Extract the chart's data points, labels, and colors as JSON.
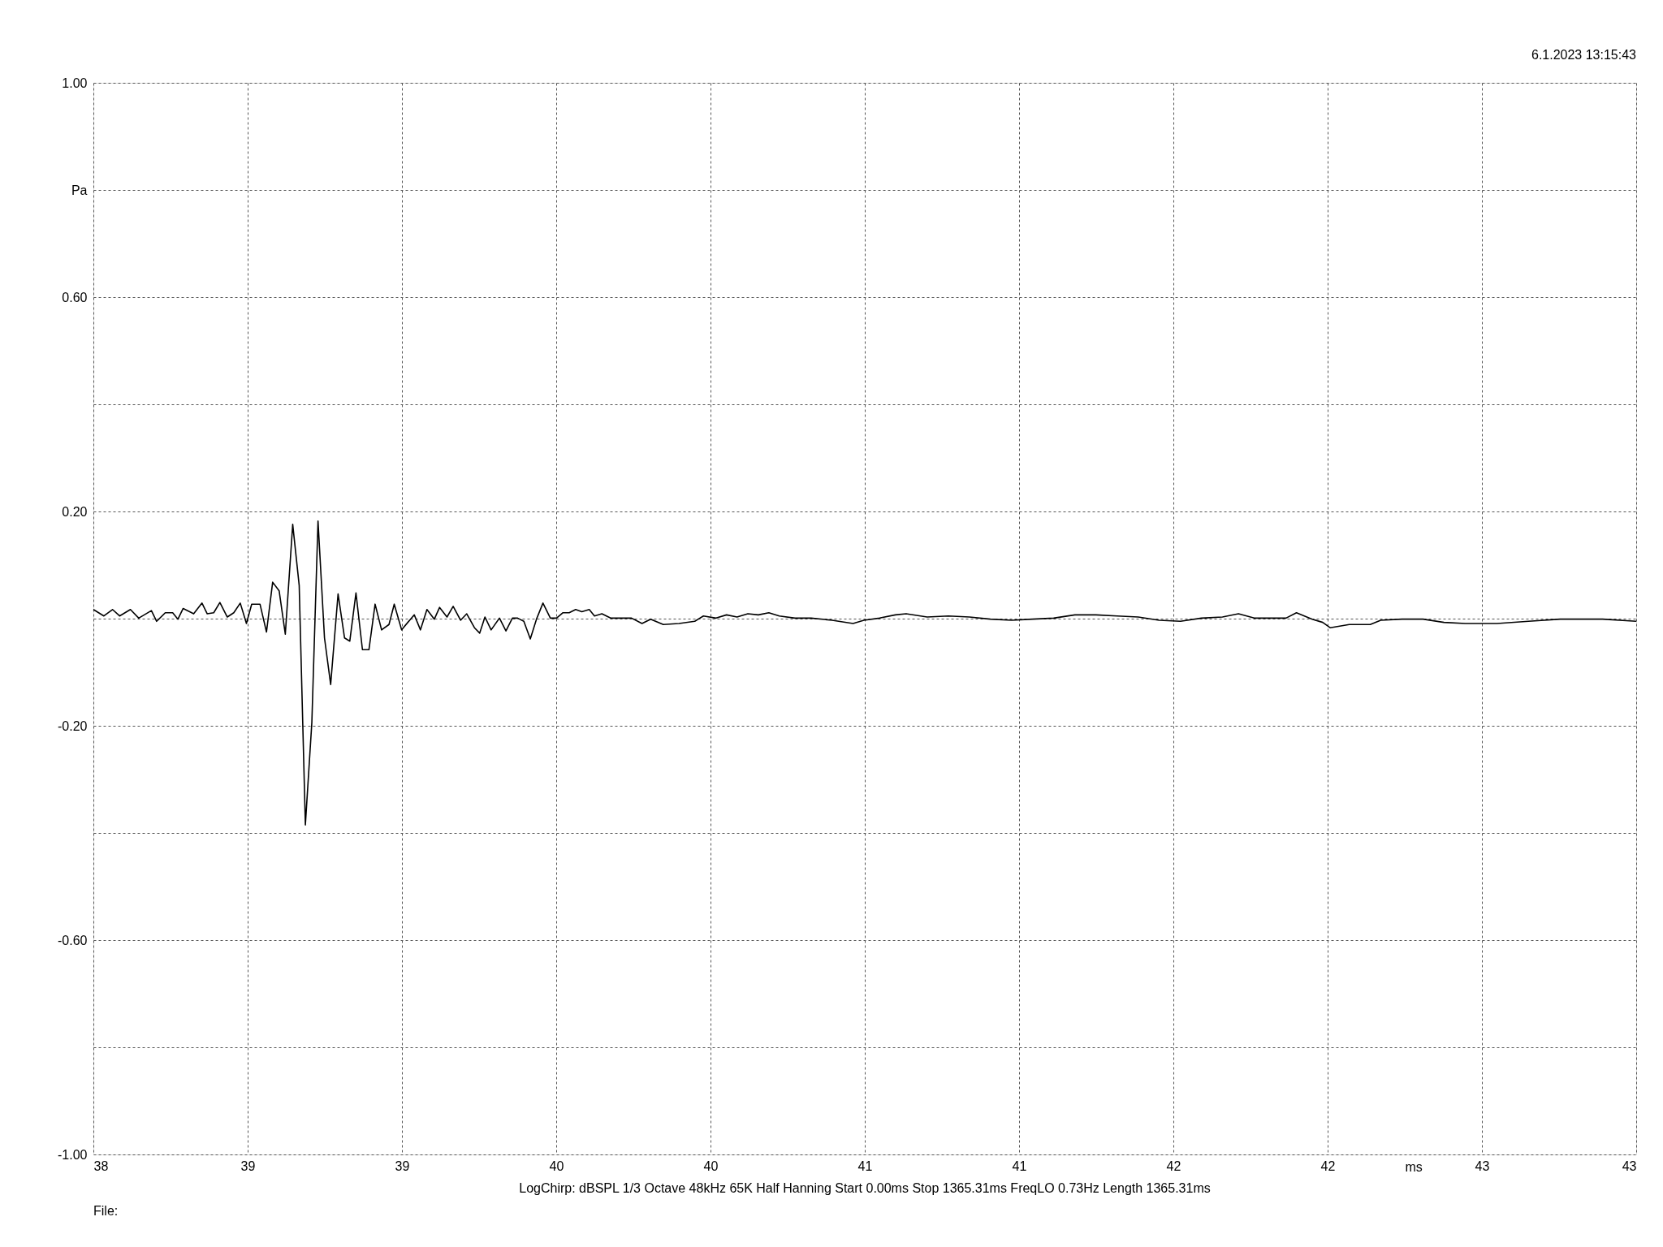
{
  "chart_data": {
    "type": "line",
    "xlabel": "ms",
    "ylabel": "Pa",
    "annotations": [
      "6.1.2023 13:15:43",
      "LogChirp:  dBSPL   1/3 Octave   48kHz   65K   Half Hanning   Start 0.00ms   Stop 1365.31ms   FreqLO 0.73Hz   Length 1365.31ms",
      "File:"
    ],
    "xlim": [
      38,
      43
    ],
    "xticks": [
      38,
      {
        "value": 38.5,
        "label": "39"
      },
      39,
      {
        "value": 39.5,
        "label": "40"
      },
      40,
      {
        "value": 40.5,
        "label": "41"
      },
      41,
      {
        "value": 41.5,
        "label": "42"
      },
      42,
      {
        "value": 42.5,
        "label": "43"
      },
      43
    ],
    "ylim": [
      -1,
      1
    ],
    "yticks": [
      {
        "value": -1,
        "label": "-1.00"
      },
      {
        "value": -0.8,
        "label": null
      },
      {
        "value": -0.6,
        "label": "-0.60"
      },
      {
        "value": -0.4,
        "label": null
      },
      {
        "value": -0.2,
        "label": "-0.20"
      },
      {
        "value": 0,
        "label": null
      },
      {
        "value": 0.2,
        "label": "0.20"
      },
      {
        "value": 0.4,
        "label": null
      },
      {
        "value": 0.6,
        "label": "0.60"
      },
      {
        "value": 0.8,
        "label": null
      },
      {
        "value": 1,
        "label": "1.00"
      }
    ],
    "grid": true,
    "marker": "none",
    "line_style": "solid",
    "series": [
      {
        "color": "#000000",
        "x": [
          38.0,
          38.034,
          38.062,
          38.085,
          38.12,
          38.147,
          38.188,
          38.205,
          38.233,
          38.257,
          38.274,
          38.291,
          38.325,
          38.352,
          38.369,
          38.39,
          38.41,
          38.434,
          38.455,
          38.476,
          38.496,
          38.513,
          38.54,
          38.561,
          38.581,
          38.602,
          38.622,
          38.646,
          38.667,
          38.687,
          38.708,
          38.728,
          38.749,
          38.769,
          38.793,
          38.814,
          38.831,
          38.851,
          38.872,
          38.893,
          38.913,
          38.934,
          38.958,
          38.975,
          38.999,
          39.019,
          39.04,
          39.06,
          39.081,
          39.105,
          39.122,
          39.146,
          39.166,
          39.19,
          39.21,
          39.235,
          39.252,
          39.269,
          39.289,
          39.316,
          39.337,
          39.358,
          39.375,
          39.395,
          39.416,
          39.436,
          39.457,
          39.481,
          39.501,
          39.522,
          39.542,
          39.563,
          39.583,
          39.607,
          39.624,
          39.648,
          39.676,
          39.744,
          39.778,
          39.806,
          39.847,
          39.898,
          39.949,
          39.977,
          40.018,
          40.052,
          40.086,
          40.121,
          40.155,
          40.189,
          40.223,
          40.274,
          40.326,
          40.394,
          40.462,
          40.497,
          40.548,
          40.599,
          40.634,
          40.702,
          40.771,
          40.839,
          40.907,
          40.976,
          41.044,
          41.112,
          41.181,
          41.249,
          41.318,
          41.386,
          41.454,
          41.523,
          41.591,
          41.659,
          41.711,
          41.762,
          41.813,
          41.865,
          41.899,
          41.95,
          41.984,
          42.008,
          42.07,
          42.138,
          42.172,
          42.241,
          42.309,
          42.377,
          42.446,
          42.549,
          42.651,
          42.754,
          42.891,
          43.0
        ],
        "values": [
          0.017,
          0.005,
          0.017,
          0.005,
          0.017,
          0.001,
          0.015,
          -0.005,
          0.011,
          0.011,
          -0.001,
          0.019,
          0.009,
          0.029,
          0.009,
          0.011,
          0.03,
          0.003,
          0.011,
          0.029,
          -0.009,
          0.027,
          0.027,
          -0.025,
          0.068,
          0.052,
          -0.029,
          0.176,
          0.062,
          -0.385,
          -0.194,
          0.182,
          -0.036,
          -0.123,
          0.046,
          -0.036,
          -0.042,
          0.048,
          -0.058,
          -0.058,
          0.027,
          -0.021,
          -0.011,
          0.027,
          -0.021,
          -0.007,
          0.007,
          -0.021,
          0.017,
          -0.001,
          0.021,
          0.003,
          0.023,
          -0.003,
          0.009,
          -0.017,
          -0.027,
          0.003,
          -0.021,
          0.001,
          -0.023,
          0.001,
          0.001,
          -0.005,
          -0.038,
          -0.001,
          0.029,
          0.001,
          0.001,
          0.011,
          0.011,
          0.017,
          0.013,
          0.017,
          0.005,
          0.009,
          0.001,
          0.001,
          -0.009,
          -0.001,
          -0.011,
          -0.009,
          -0.005,
          0.005,
          0.001,
          0.007,
          0.003,
          0.009,
          0.007,
          0.011,
          0.005,
          0.001,
          0.001,
          -0.003,
          -0.009,
          -0.003,
          0.001,
          0.007,
          0.009,
          0.003,
          0.005,
          0.003,
          -0.001,
          -0.003,
          -0.001,
          0.001,
          0.007,
          0.007,
          0.005,
          0.003,
          -0.003,
          -0.005,
          0.001,
          0.003,
          0.009,
          0.001,
          0.001,
          0.001,
          0.011,
          -0.001,
          -0.007,
          -0.017,
          -0.011,
          -0.011,
          -0.003,
          -0.001,
          -0.001,
          -0.007,
          -0.009,
          -0.009,
          -0.005,
          -0.001,
          -0.001,
          -0.005
        ]
      }
    ]
  }
}
